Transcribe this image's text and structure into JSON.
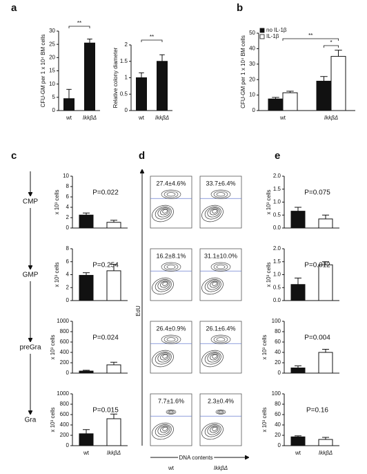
{
  "panels": [
    "a",
    "b",
    "c",
    "d",
    "e"
  ],
  "stages": [
    "CMP",
    "GMP",
    "preGra",
    "Gra"
  ],
  "flow": {
    "y_label": "EdU",
    "x_label": "DNA contents",
    "columns": [
      "wt",
      "IkkβΔ"
    ],
    "percentages": [
      [
        "27.4±4.6%",
        "33.7±6.4%"
      ],
      [
        "16.2±8.1%",
        "31.1±10.0%"
      ],
      [
        "26.4±0.9%",
        "26.1±6.4%"
      ],
      [
        "7.7±1.6%",
        "2.3±0.4%"
      ]
    ]
  },
  "chart_data": [
    {
      "type": "bar",
      "y_label": "CFU-GM per 1 x 10⁴ BM cells",
      "categories": [
        "wt",
        "IkkβΔ"
      ],
      "values": [
        4.5,
        25.5
      ],
      "errors": [
        3.5,
        1.5
      ],
      "colors": [
        "#111111",
        "#111111"
      ],
      "ylim": [
        0,
        30
      ],
      "yticks": [
        0,
        5,
        10,
        15,
        20,
        25,
        30
      ],
      "significance": [
        "**"
      ]
    },
    {
      "type": "bar",
      "y_label": "Relative colony diameter",
      "categories": [
        "wt",
        "IkkβΔ"
      ],
      "values": [
        1.0,
        1.5
      ],
      "errors": [
        0.15,
        0.2
      ],
      "colors": [
        "#111111",
        "#111111"
      ],
      "ylim": [
        0,
        2
      ],
      "yticks": [
        0,
        0.5,
        1,
        1.5,
        2
      ],
      "significance": [
        "**"
      ]
    },
    {
      "type": "bar",
      "y_label": "CFU-GM per 1 x 10⁴ BM cells",
      "categories": [
        "wt",
        "IkkβΔ"
      ],
      "series": [
        {
          "name": "no IL-1β",
          "color": "#111111",
          "values": [
            7.5,
            19
          ],
          "errors": [
            1,
            3
          ]
        },
        {
          "name": "IL-1β",
          "color": "#ffffff",
          "values": [
            11.5,
            35
          ],
          "errors": [
            1,
            4
          ]
        }
      ],
      "ylim": [
        0,
        50
      ],
      "yticks": [
        0,
        10,
        20,
        30,
        40,
        50
      ],
      "significance": [
        "**",
        "*"
      ]
    },
    {
      "type": "bar",
      "y_label": "x 10³ cells",
      "values": [
        2.5,
        1.1
      ],
      "errors": [
        0.4,
        0.4
      ],
      "colors": [
        "#111111",
        "#ffffff"
      ],
      "ylim": [
        0,
        10
      ],
      "yticks": [
        0,
        2,
        4,
        6,
        8,
        10
      ],
      "annotation": "P=0.022"
    },
    {
      "type": "bar",
      "y_label": "x 10³ cells",
      "values": [
        3.9,
        4.6
      ],
      "errors": [
        0.4,
        1.0
      ],
      "colors": [
        "#111111",
        "#ffffff"
      ],
      "ylim": [
        0,
        8
      ],
      "yticks": [
        0,
        2,
        4,
        6,
        8
      ],
      "annotation": "P=0.254"
    },
    {
      "type": "bar",
      "y_label": "x 10³ cells",
      "values": [
        40,
        160
      ],
      "errors": [
        15,
        50
      ],
      "colors": [
        "#111111",
        "#ffffff"
      ],
      "ylim": [
        0,
        1000
      ],
      "yticks": [
        0,
        200,
        400,
        600,
        800,
        1000
      ],
      "annotation": "P=0.024"
    },
    {
      "type": "bar",
      "y_label": "x 10³ cells",
      "categories": [
        "wt",
        "IkkβΔ"
      ],
      "values": [
        230,
        520
      ],
      "errors": [
        80,
        90
      ],
      "colors": [
        "#111111",
        "#ffffff"
      ],
      "ylim": [
        0,
        1000
      ],
      "yticks": [
        0,
        200,
        400,
        600,
        800,
        1000
      ],
      "annotation": "P=0.015"
    },
    {
      "type": "bar",
      "y_label": "x 10³ cells",
      "values": [
        0.65,
        0.35
      ],
      "errors": [
        0.15,
        0.15
      ],
      "colors": [
        "#111111",
        "#ffffff"
      ],
      "ylim": [
        0,
        2
      ],
      "yticks": [
        {
          "value": 0,
          "label": "0.0"
        },
        0.5,
        {
          "value": 1,
          "label": "1.0"
        },
        1.5,
        {
          "value": 2,
          "label": "2.0"
        }
      ],
      "annotation": "P=0.075"
    },
    {
      "type": "bar",
      "y_label": "x 10³ cells",
      "values": [
        0.62,
        1.38
      ],
      "errors": [
        0.25,
        0.12
      ],
      "colors": [
        "#111111",
        "#ffffff"
      ],
      "ylim": [
        0,
        2
      ],
      "yticks": [
        {
          "value": 0,
          "label": "0.0"
        },
        0.5,
        {
          "value": 1,
          "label": "1.0"
        },
        1.5,
        {
          "value": 2,
          "label": "2.0"
        }
      ],
      "annotation": "P=0.012"
    },
    {
      "type": "bar",
      "y_label": "x 10³ cells",
      "values": [
        10,
        40
      ],
      "errors": [
        4,
        6
      ],
      "colors": [
        "#111111",
        "#ffffff"
      ],
      "ylim": [
        0,
        100
      ],
      "yticks": [
        0,
        20,
        40,
        60,
        80,
        100
      ],
      "annotation": "P=0.004"
    },
    {
      "type": "bar",
      "y_label": "x 10³ cells",
      "categories": [
        "wt",
        "IkkβΔ"
      ],
      "values": [
        17,
        12
      ],
      "errors": [
        2,
        4
      ],
      "colors": [
        "#111111",
        "#ffffff"
      ],
      "ylim": [
        0,
        100
      ],
      "yticks": [
        0,
        20,
        40,
        60,
        80,
        100
      ],
      "annotation": "P=0.16"
    }
  ]
}
